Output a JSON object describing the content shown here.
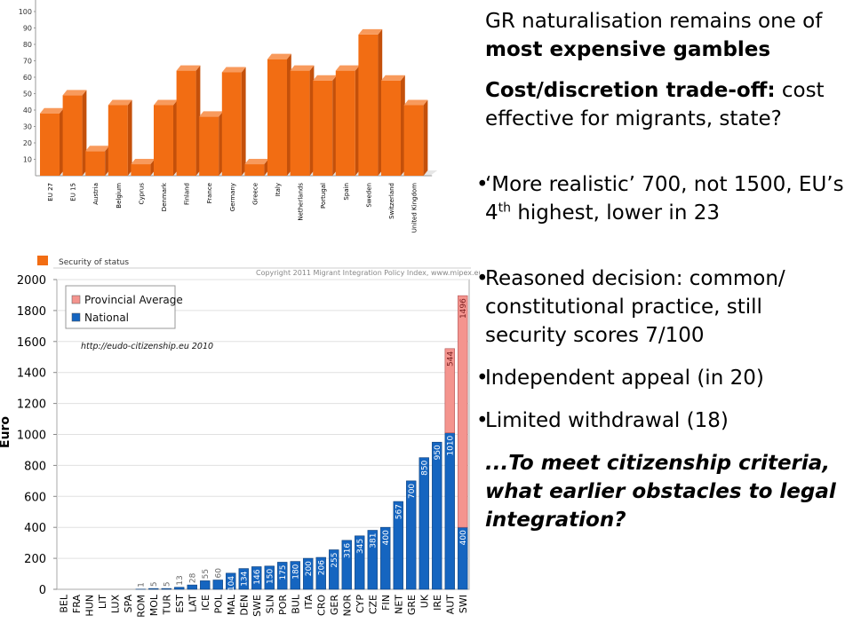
{
  "chart_data": [
    {
      "type": "bar",
      "style": "3d",
      "categories": [
        "EU 27",
        "EU 15",
        "Austria",
        "Belgium",
        "Cyprus",
        "Denmark",
        "Finland",
        "France",
        "Germany",
        "Greece",
        "Italy",
        "Netherlands",
        "Portugal",
        "Spain",
        "Sweden",
        "Switzerland",
        "United Kingdom"
      ],
      "values": [
        38,
        49,
        15,
        43,
        7,
        43,
        64,
        36,
        63,
        7,
        71,
        64,
        58,
        64,
        86,
        58,
        43
      ],
      "ylim": [
        0,
        100
      ],
      "yticks": [
        10,
        20,
        30,
        40,
        50,
        60,
        70,
        80,
        90,
        100
      ],
      "legend": [
        "Security of status"
      ],
      "color": "#f26d13",
      "grid": false
    },
    {
      "type": "bar",
      "stacked": true,
      "categories": [
        "BEL",
        "FRA",
        "HUN",
        "LIT",
        "LUX",
        "SPA",
        "ROM",
        "MOL",
        "TUR",
        "EST",
        "LAT",
        "ICE",
        "POL",
        "MAL",
        "DEN",
        "SWE",
        "SLN",
        "POR",
        "BUL",
        "ITA",
        "CRO",
        "GER",
        "NOR",
        "CYP",
        "CZE",
        "FIN",
        "NET",
        "GRE",
        "UK",
        "IRE",
        "AUT",
        "SWI"
      ],
      "series": [
        {
          "name": "National",
          "color": "#1565c0",
          "values": [
            0,
            0,
            0,
            0,
            0,
            0,
            1,
            5,
            5,
            13,
            28,
            55,
            60,
            104,
            134,
            146,
            150,
            175,
            180,
            200,
            206,
            255,
            316,
            345,
            381,
            400,
            567,
            700,
            850,
            950,
            1010,
            400
          ]
        },
        {
          "name": "Provincial Average",
          "color": "#f4948e",
          "values": [
            0,
            0,
            0,
            0,
            0,
            0,
            0,
            0,
            0,
            0,
            0,
            0,
            0,
            0,
            0,
            0,
            0,
            0,
            0,
            0,
            0,
            0,
            0,
            0,
            0,
            0,
            0,
            0,
            0,
            0,
            544,
            1496
          ]
        }
      ],
      "labels_national": [
        "",
        "",
        "",
        "",
        "",
        "",
        "1",
        "5",
        "5",
        "13",
        "28",
        "55",
        "60",
        "104",
        "134",
        "146",
        "150",
        "175",
        "180",
        "200",
        "206",
        "255",
        "316",
        "345",
        "381",
        "400",
        "567",
        "700",
        "850",
        "950",
        "1010",
        "400"
      ],
      "labels_provincial": [
        "",
        "",
        "",
        "",
        "",
        "",
        "",
        "",
        "",
        "",
        "",
        "",
        "",
        "",
        "",
        "",
        "",
        "",
        "",
        "",
        "",
        "",
        "",
        "",
        "",
        "",
        "",
        "",
        "",
        "",
        "544",
        "1496"
      ],
      "ylabel": "Euro",
      "ylim": [
        0,
        2000
      ],
      "yticks": [
        0,
        200,
        400,
        600,
        800,
        1000,
        1200,
        1400,
        1600,
        1800,
        2000
      ],
      "copyright": "Copyright 2011 Migrant Integration Policy Index, www.mipex.eu",
      "annotation": "http://eudo-citizenship.eu  2010",
      "legend_position": "top-left"
    }
  ],
  "text": {
    "p1_a": "GR naturalisation remains one of ",
    "p1_b": "most expensive gambles",
    "p2_a": "Cost/discretion trade-off:",
    "p2_b": " cost effective for migrants, state?",
    "b1_a": "‘More realistic’ 700, not 1500, EU’s 4",
    "b1_sup": "th",
    "b1_b": " highest, lower in 23",
    "b2": "Reasoned decision: common/ constitutional practice, still security scores 7/100",
    "b3": "Independent appeal (in 20)",
    "b4": "Limited withdrawal (18)",
    "q": "...To meet citizenship criteria, what earlier obstacles to legal integration?",
    "bullet": "•"
  }
}
